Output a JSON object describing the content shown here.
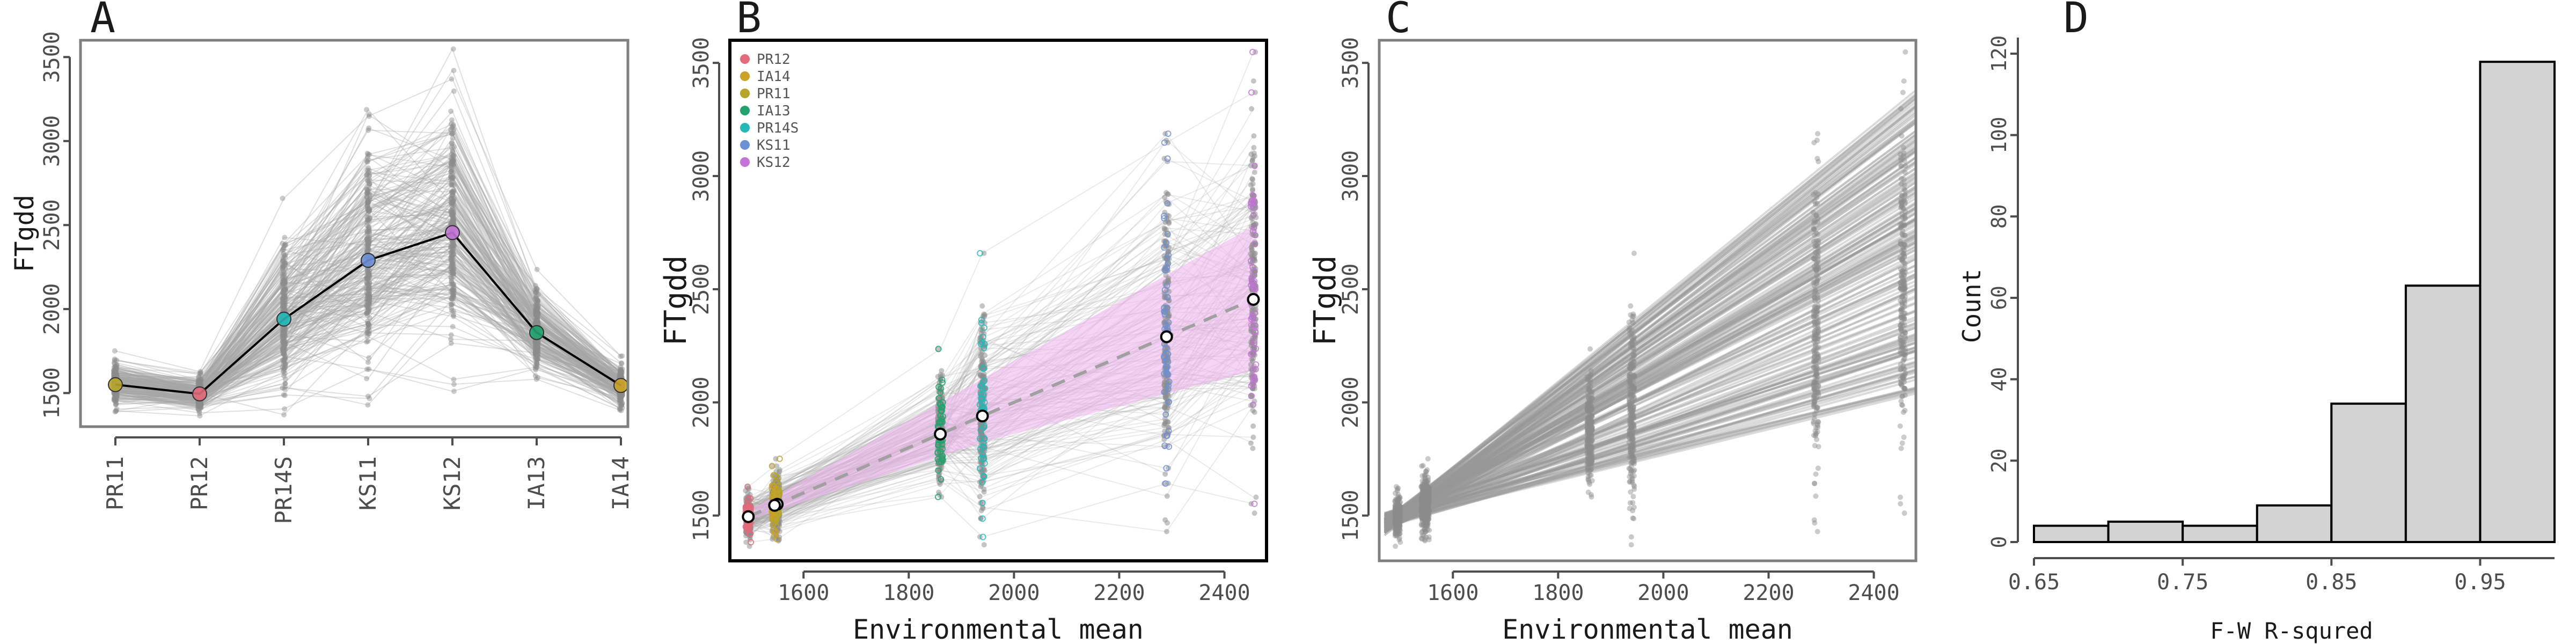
{
  "chart_data": [
    {
      "panel": "A",
      "type": "line",
      "ylabel": "FTgdd",
      "xlabel": "",
      "categories": [
        "PR11",
        "PR12",
        "PR14S",
        "KS11",
        "KS12",
        "IA13",
        "IA14"
      ],
      "ylim": [
        1300,
        3600
      ],
      "yticks": [
        1500,
        2000,
        2500,
        3000,
        3500
      ],
      "series": [
        {
          "values": [
            1550,
            1495,
            1940,
            2290,
            2455,
            1860,
            1545
          ]
        }
      ],
      "point_colors": [
        "#b5a52a",
        "#e26a7a",
        "#25b6b6",
        "#6d8fd6",
        "#c373d6",
        "#21a36b",
        "#c9a227"
      ],
      "grid": false
    },
    {
      "panel": "B",
      "type": "scatter",
      "xlabel": "Environmental mean",
      "ylabel": "FTgdd",
      "xlim": [
        1460,
        2480
      ],
      "ylim": [
        1300,
        3600
      ],
      "xticks": [
        1600,
        1800,
        2000,
        2200,
        2400
      ],
      "yticks": [
        1500,
        2000,
        2500,
        3000,
        3500
      ],
      "legend_position": "top-left",
      "series": [
        {
          "name": "PR12",
          "color": "#e26a7a",
          "x": 1495
        },
        {
          "name": "IA14",
          "color": "#c9a227",
          "x": 1545
        },
        {
          "name": "PR11",
          "color": "#b5a52a",
          "x": 1550
        },
        {
          "name": "IA13",
          "color": "#21a36b",
          "x": 1860
        },
        {
          "name": "PR14S",
          "color": "#25b6b6",
          "x": 1940
        },
        {
          "name": "KS11",
          "color": "#6d8fd6",
          "x": 2290
        },
        {
          "name": "KS12",
          "color": "#c373d6",
          "x": 2455
        }
      ],
      "trend_line": {
        "x": [
          1495,
          2455
        ],
        "y": [
          1495,
          2455
        ]
      },
      "band_upper": {
        "x": [
          1495,
          2455
        ],
        "y": [
          1520,
          2780
        ]
      },
      "band_lower": {
        "x": [
          1495,
          1950,
          2455
        ],
        "y": [
          1480,
          1830,
          2140
        ]
      },
      "grid": false
    },
    {
      "panel": "C",
      "type": "line",
      "xlabel": "Environmental mean",
      "ylabel": "FTgdd",
      "xlim": [
        1460,
        2480
      ],
      "ylim": [
        1300,
        3600
      ],
      "xticks": [
        1600,
        1800,
        2000,
        2200,
        2400
      ],
      "yticks": [
        1500,
        2000,
        2500,
        3000,
        3500
      ],
      "grid": false
    },
    {
      "panel": "D",
      "type": "bar",
      "xlabel": "F-W R-squred",
      "ylabel": "Count",
      "xlim": [
        0.65,
        1.0
      ],
      "ylim": [
        0,
        125
      ],
      "xticks": [
        0.65,
        0.75,
        0.85,
        0.95
      ],
      "yticks": [
        0,
        20,
        40,
        60,
        80,
        100,
        120
      ],
      "bin_edges": [
        0.65,
        0.7,
        0.75,
        0.8,
        0.85,
        0.9,
        0.95,
        1.0
      ],
      "values": [
        4,
        5,
        4,
        9,
        34,
        63,
        118
      ],
      "grid": false
    }
  ],
  "panel_labels": [
    "A",
    "B",
    "C",
    "D"
  ],
  "colors": {
    "line_gray": "#a6a6a6",
    "dot_gray": "#8c8c8c",
    "frame": "#7f7f7f",
    "band": "#f0b8f0",
    "bar_fill": "#d3d3d3"
  }
}
